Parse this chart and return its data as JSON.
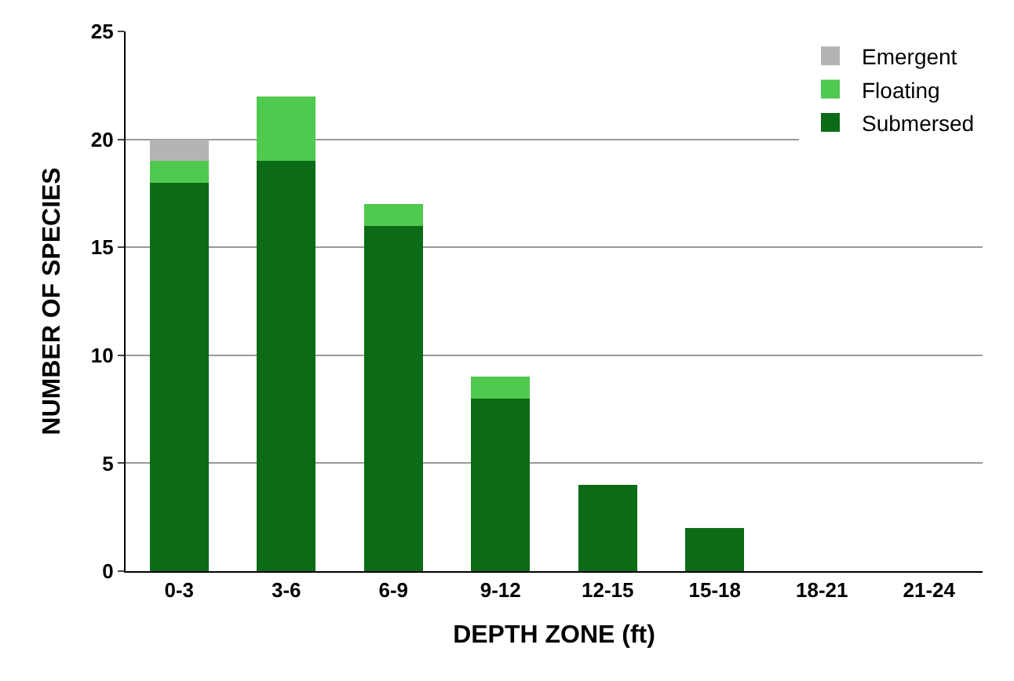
{
  "chart_data": {
    "type": "bar",
    "stacked": true,
    "xlabel": "DEPTH ZONE (ft)",
    "ylabel": "NUMBER OF SPECIES",
    "categories": [
      "0-3",
      "3-6",
      "6-9",
      "9-12",
      "12-15",
      "15-18",
      "18-21",
      "21-24"
    ],
    "series": [
      {
        "name": "Submersed",
        "color": "#0b6b16",
        "values": [
          18,
          19,
          16,
          8,
          4,
          2,
          0,
          0
        ]
      },
      {
        "name": "Floating",
        "color": "#4fc94f",
        "values": [
          1,
          3,
          1,
          1,
          0,
          0,
          0,
          0
        ]
      },
      {
        "name": "Emergent",
        "color": "#b4b4b4",
        "values": [
          1,
          0,
          0,
          0,
          0,
          0,
          0,
          0
        ]
      }
    ],
    "ylim": [
      0,
      25
    ],
    "yticks": [
      0,
      5,
      10,
      15,
      20,
      25
    ],
    "grid": "y",
    "legend": "top right"
  }
}
